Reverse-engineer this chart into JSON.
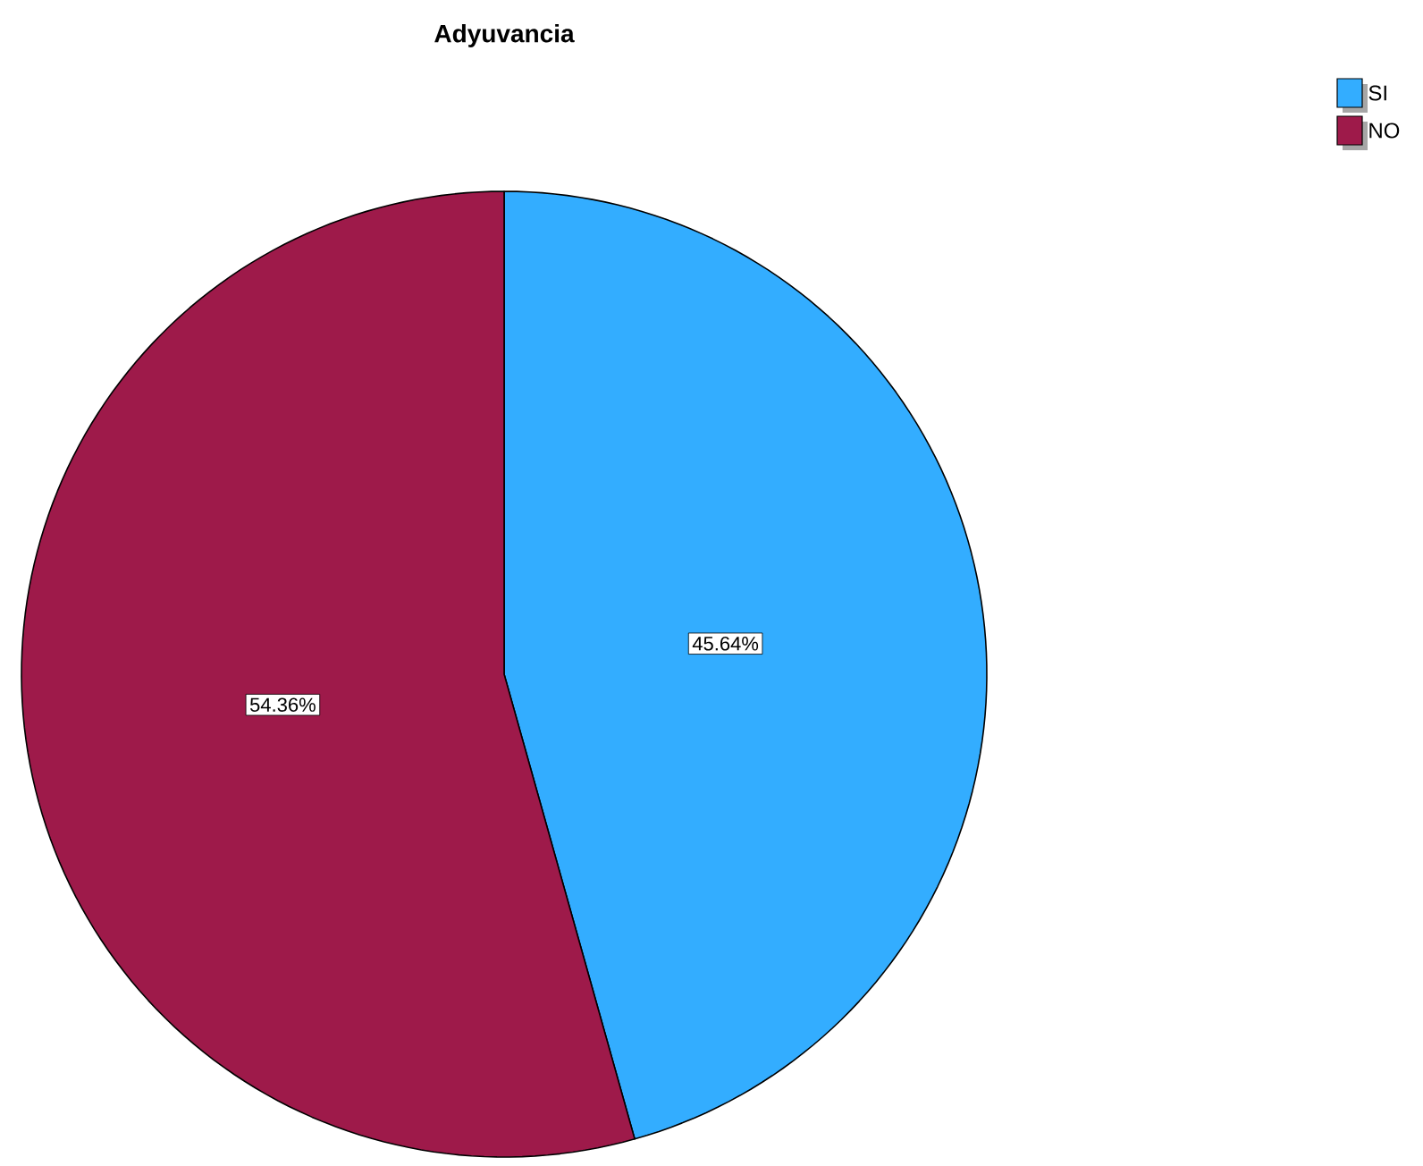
{
  "chart_data": {
    "type": "pie",
    "title": "Adyuvancia",
    "categories": [
      "SI",
      "NO"
    ],
    "values": [
      45.64,
      54.36
    ],
    "colors": [
      "#33adff",
      "#9e1a4a"
    ],
    "value_labels": [
      "45.64%",
      "54.36%"
    ],
    "legend": "top right"
  }
}
